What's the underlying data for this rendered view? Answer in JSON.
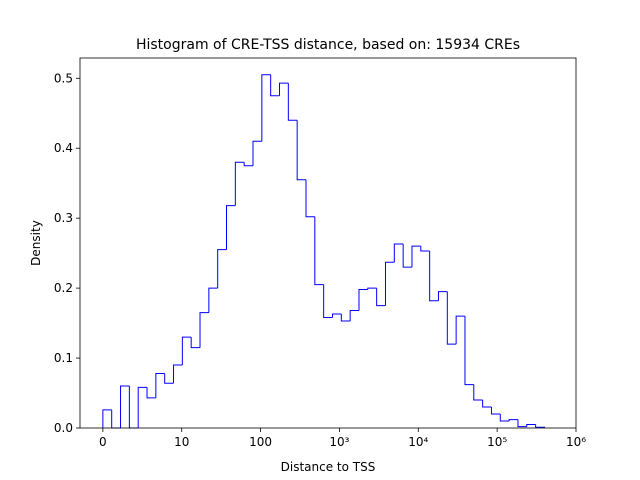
{
  "chart_data": {
    "type": "histogram",
    "title": "Histogram of CRE-TSS distance, based on: 15934 CREs",
    "x_label": "Distance to TSS",
    "y_label": "Density",
    "color": "#0000ff",
    "bins": [
      0,
      0.112,
      0.224,
      0.336,
      0.448,
      0.56,
      0.672,
      0.784,
      0.896,
      1.008,
      1.12,
      1.232,
      1.344,
      1.456,
      1.568,
      1.68,
      1.792,
      1.904,
      2.016,
      2.128,
      2.24,
      2.352,
      2.464,
      2.576,
      2.688,
      2.8,
      2.912,
      3.024,
      3.136,
      3.248,
      3.36,
      3.472,
      3.584,
      3.696,
      3.808,
      3.92,
      4.032,
      4.144,
      4.256,
      4.368,
      4.48,
      4.592,
      4.704,
      4.816,
      4.928,
      5.04,
      5.152,
      5.264,
      5.376,
      5.488,
      5.6
    ],
    "values": [
      0.026,
      0,
      0.06,
      0,
      0.058,
      0.043,
      0.078,
      0.064,
      0.09,
      0.13,
      0.115,
      0.165,
      0.2,
      0.255,
      0.318,
      0.38,
      0.375,
      0.41,
      0.505,
      0.475,
      0.493,
      0.44,
      0.355,
      0.302,
      0.205,
      0.158,
      0.163,
      0.153,
      0.168,
      0.198,
      0.2,
      0.175,
      0.237,
      0.263,
      0.23,
      0.26,
      0.253,
      0.182,
      0.195,
      0.12,
      0.16,
      0.062,
      0.04,
      0.03,
      0.02,
      0.01,
      0.012,
      0.002,
      0.005,
      0.001
    ],
    "xlim": [
      -0.29,
      6
    ],
    "xticks": [
      {
        "value": 0,
        "label": "0"
      },
      {
        "value": 1,
        "label": "10"
      },
      {
        "value": 2,
        "label": "100"
      },
      {
        "value": 3,
        "label": "10³"
      },
      {
        "value": 4,
        "label": "10⁴"
      },
      {
        "value": 5,
        "label": "10⁵"
      },
      {
        "value": 6,
        "label": "10⁶"
      }
    ],
    "ylim": [
      0,
      0.529
    ],
    "yticks": [
      {
        "value": 0,
        "label": "0.0"
      },
      0.1,
      0.2,
      0.3,
      0.4,
      0.5
    ]
  }
}
